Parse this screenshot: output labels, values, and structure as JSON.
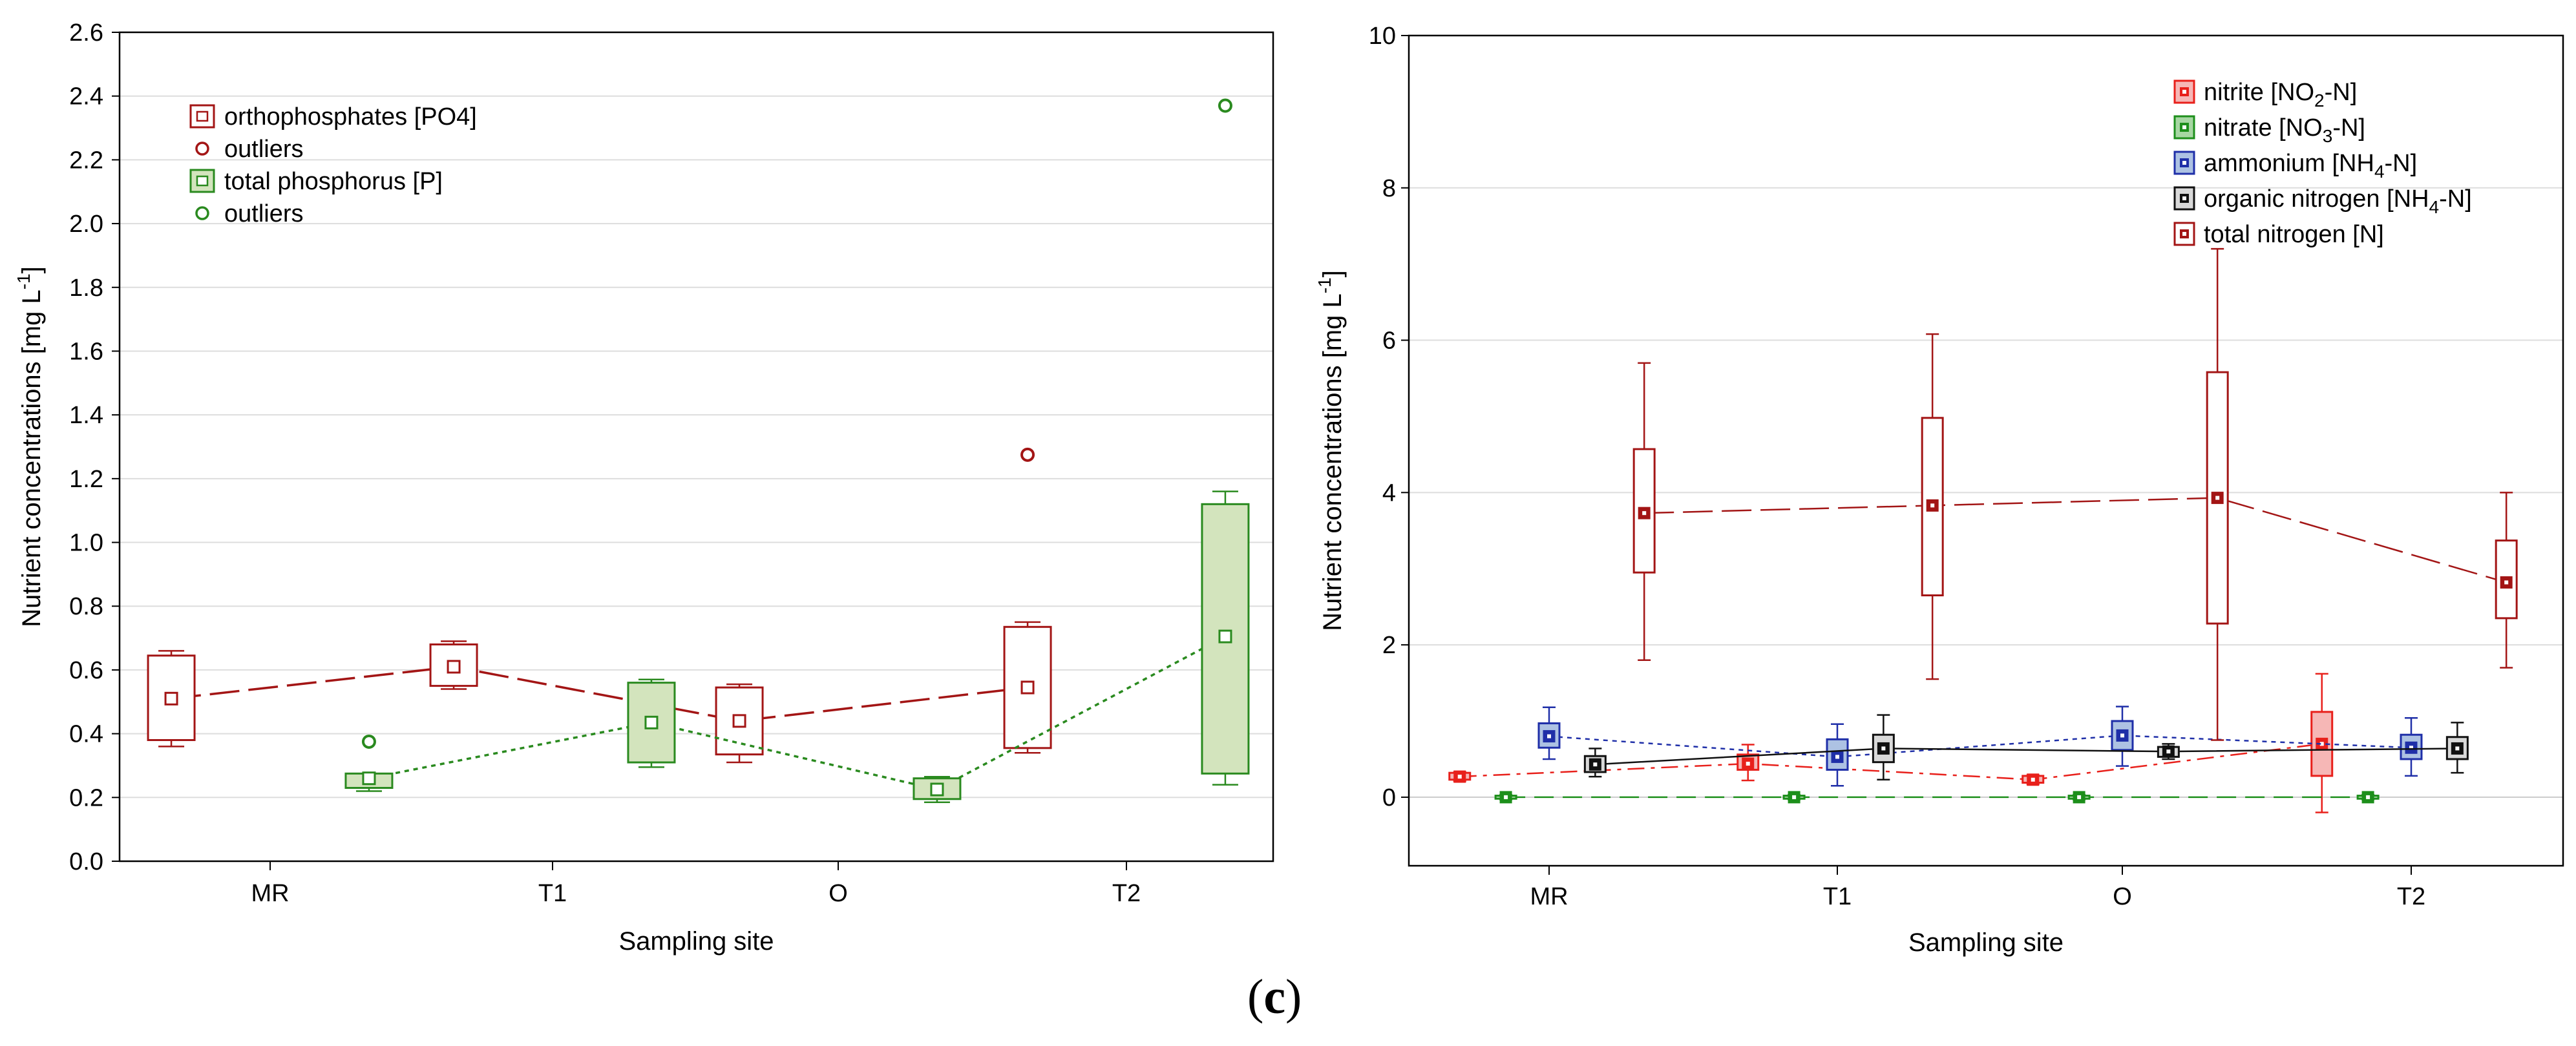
{
  "panel_label": {
    "open": "(",
    "letter": "c",
    "close": ")"
  },
  "colors": {
    "ortho": "#a31515",
    "ortho_outlier": "#a31515",
    "tp": "#2a8a1f",
    "tp_fill": "#d3e4bd",
    "nitrite": "#e8201b",
    "nitrite_fill": "#f6b7b6",
    "nitrate": "#1d8f1b",
    "nitrate_fill": "#a7d7a3",
    "ammonium": "#1f2fa8",
    "ammonium_fill": "#adc2e3",
    "organic": "#111111",
    "organic_fill": "#d9d9d9",
    "total_n": "#a31515",
    "grid": "#dddddd"
  },
  "chart_data": [
    {
      "type": "box",
      "title": "",
      "xlabel": "Sampling site",
      "ylabel": "Nutrient concentrations [mg L-1]",
      "ylabel_main": "Nutrient concentrations [mg L",
      "ylabel_sup": "-1",
      "ylabel_end": "]",
      "categories": [
        "MR",
        "T1",
        "O",
        "T2"
      ],
      "ylim": [
        0,
        2.6
      ],
      "yticks": [
        "0.0",
        "0.2",
        "0.4",
        "0.6",
        "0.8",
        "1.0",
        "1.2",
        "1.4",
        "1.6",
        "1.8",
        "2.0",
        "2.2",
        "2.4",
        "2.6"
      ],
      "grid": true,
      "legend_position": "top-left",
      "legend": [
        {
          "label": "orthophosphates [PO4]",
          "kind": "box",
          "color_key": "ortho"
        },
        {
          "label": "outliers",
          "kind": "circle",
          "color_key": "ortho"
        },
        {
          "label": "total phosphorus [P]",
          "kind": "box",
          "color_key": "tp"
        },
        {
          "label": "outliers",
          "kind": "circle",
          "color_key": "tp"
        }
      ],
      "series": [
        {
          "name": "orthophosphates [PO4]",
          "color_key": "ortho",
          "fill": "none",
          "offset": -0.35,
          "line": "longdash",
          "boxes": [
            {
              "median": 0.51,
              "q1": 0.38,
              "q3": 0.645,
              "min": 0.36,
              "max": 0.66
            },
            {
              "median": 0.61,
              "q1": 0.55,
              "q3": 0.68,
              "min": 0.54,
              "max": 0.69
            },
            {
              "median": 0.44,
              "q1": 0.335,
              "q3": 0.545,
              "min": 0.31,
              "max": 0.555
            },
            {
              "median": 0.545,
              "q1": 0.355,
              "q3": 0.735,
              "min": 0.34,
              "max": 0.75
            }
          ],
          "outliers": [
            {
              "category": 3,
              "value": 1.275
            }
          ]
        },
        {
          "name": "total phosphorus [P]",
          "color_key": "tp",
          "fill_key": "tp_fill",
          "offset": 0.35,
          "line": "dotted",
          "boxes": [
            {
              "median": 0.26,
              "q1": 0.23,
              "q3": 0.275,
              "min": 0.22,
              "max": 0.275
            },
            {
              "median": 0.435,
              "q1": 0.31,
              "q3": 0.56,
              "min": 0.295,
              "max": 0.57
            },
            {
              "median": 0.225,
              "q1": 0.195,
              "q3": 0.26,
              "min": 0.185,
              "max": 0.265
            },
            {
              "median": 0.705,
              "q1": 0.275,
              "q3": 1.12,
              "min": 0.24,
              "max": 1.16
            }
          ],
          "outliers": [
            {
              "category": 0,
              "value": 0.375
            },
            {
              "category": 3,
              "value": 2.37
            }
          ]
        }
      ]
    },
    {
      "type": "box",
      "title": "",
      "xlabel": "Sampling site",
      "ylabel": "Nutrient concentrations [mg L-1]",
      "ylabel_main": "Nutrient concentrations [mg L",
      "ylabel_sup": "-1",
      "ylabel_end": "]",
      "categories": [
        "MR",
        "T1",
        "O",
        "T2"
      ],
      "ylim": [
        -0.9,
        10
      ],
      "yticks": [
        "0",
        "2",
        "4",
        "6",
        "8",
        "10"
      ],
      "ytick_values": [
        0,
        2,
        4,
        6,
        8,
        10
      ],
      "grid": true,
      "legend_position": "top-right",
      "legend": [
        {
          "label": "nitrite [NO2-N]",
          "pre": "nitrite [NO",
          "sub": "2",
          "post": "-N]",
          "color_key": "nitrite"
        },
        {
          "label": "nitrate [NO3-N]",
          "pre": "nitrate [NO",
          "sub": "3",
          "post": "-N]",
          "color_key": "nitrate"
        },
        {
          "label": "ammonium [NH4-N]",
          "pre": "ammonium [NH",
          "sub": "4",
          "post": "-N]",
          "color_key": "ammonium"
        },
        {
          "label": "organic nitrogen [NH4-N]",
          "pre": "organic nitrogen [NH",
          "sub": "4",
          "post": "-N]",
          "color_key": "organic"
        },
        {
          "label": "total nitrogen [N]",
          "pre": "total nitrogen [N]",
          "sub": "",
          "post": "",
          "color_key": "total_n"
        }
      ],
      "series": [
        {
          "name": "nitrite [NO2-N]",
          "color_key": "nitrite",
          "fill_key": "nitrite_fill",
          "offset": -0.31,
          "line": "dashdot",
          "boxes": [
            {
              "median": 0.27,
              "q1": 0.23,
              "q3": 0.32,
              "min": 0.21,
              "max": 0.33
            },
            {
              "median": 0.44,
              "q1": 0.36,
              "q3": 0.56,
              "min": 0.22,
              "max": 0.69
            },
            {
              "median": 0.23,
              "q1": 0.19,
              "q3": 0.28,
              "min": 0.17,
              "max": 0.29
            },
            {
              "median": 0.7,
              "q1": 0.28,
              "q3": 1.12,
              "min": -0.2,
              "max": 1.62
            }
          ]
        },
        {
          "name": "nitrate [NO3-N]",
          "color_key": "nitrate",
          "fill_key": "nitrate_fill",
          "offset": -0.15,
          "line": "dash",
          "boxes": [
            {
              "median": 0.0,
              "q1": -0.02,
              "q3": 0.02,
              "min": -0.03,
              "max": 0.03
            },
            {
              "median": 0.0,
              "q1": -0.02,
              "q3": 0.02,
              "min": -0.03,
              "max": 0.03
            },
            {
              "median": 0.0,
              "q1": -0.02,
              "q3": 0.02,
              "min": -0.03,
              "max": 0.03
            },
            {
              "median": 0.0,
              "q1": -0.02,
              "q3": 0.02,
              "min": -0.03,
              "max": 0.03
            }
          ]
        },
        {
          "name": "ammonium [NH4-N]",
          "color_key": "ammonium",
          "fill_key": "ammonium_fill",
          "offset": 0.0,
          "line": "dotted",
          "boxes": [
            {
              "median": 0.8,
              "q1": 0.65,
              "q3": 0.97,
              "min": 0.5,
              "max": 1.18
            },
            {
              "median": 0.53,
              "q1": 0.36,
              "q3": 0.76,
              "min": 0.15,
              "max": 0.96
            },
            {
              "median": 0.81,
              "q1": 0.62,
              "q3": 1.0,
              "min": 0.41,
              "max": 1.19
            },
            {
              "median": 0.65,
              "q1": 0.5,
              "q3": 0.82,
              "min": 0.28,
              "max": 1.04
            }
          ]
        },
        {
          "name": "organic nitrogen [NH4-N]",
          "color_key": "organic",
          "fill_key": "organic_fill",
          "offset": 0.16,
          "line": "solid",
          "boxes": [
            {
              "median": 0.43,
              "q1": 0.33,
              "q3": 0.54,
              "min": 0.27,
              "max": 0.64
            },
            {
              "median": 0.64,
              "q1": 0.46,
              "q3": 0.82,
              "min": 0.23,
              "max": 1.08
            },
            {
              "median": 0.6,
              "q1": 0.53,
              "q3": 0.66,
              "min": 0.5,
              "max": 0.7
            },
            {
              "median": 0.64,
              "q1": 0.5,
              "q3": 0.79,
              "min": 0.32,
              "max": 0.98
            }
          ]
        },
        {
          "name": "total nitrogen [N]",
          "color_key": "total_n",
          "fill": "none",
          "offset": 0.33,
          "line": "longdash",
          "boxes": [
            {
              "median": 3.73,
              "q1": 2.95,
              "q3": 4.57,
              "min": 1.8,
              "max": 5.7
            },
            {
              "median": 3.83,
              "q1": 2.65,
              "q3": 4.98,
              "min": 1.55,
              "max": 6.08
            },
            {
              "median": 3.93,
              "q1": 2.28,
              "q3": 5.58,
              "min": 0.75,
              "max": 7.2
            },
            {
              "median": 2.82,
              "q1": 2.35,
              "q3": 3.37,
              "min": 1.7,
              "max": 4.0
            }
          ]
        }
      ]
    }
  ]
}
